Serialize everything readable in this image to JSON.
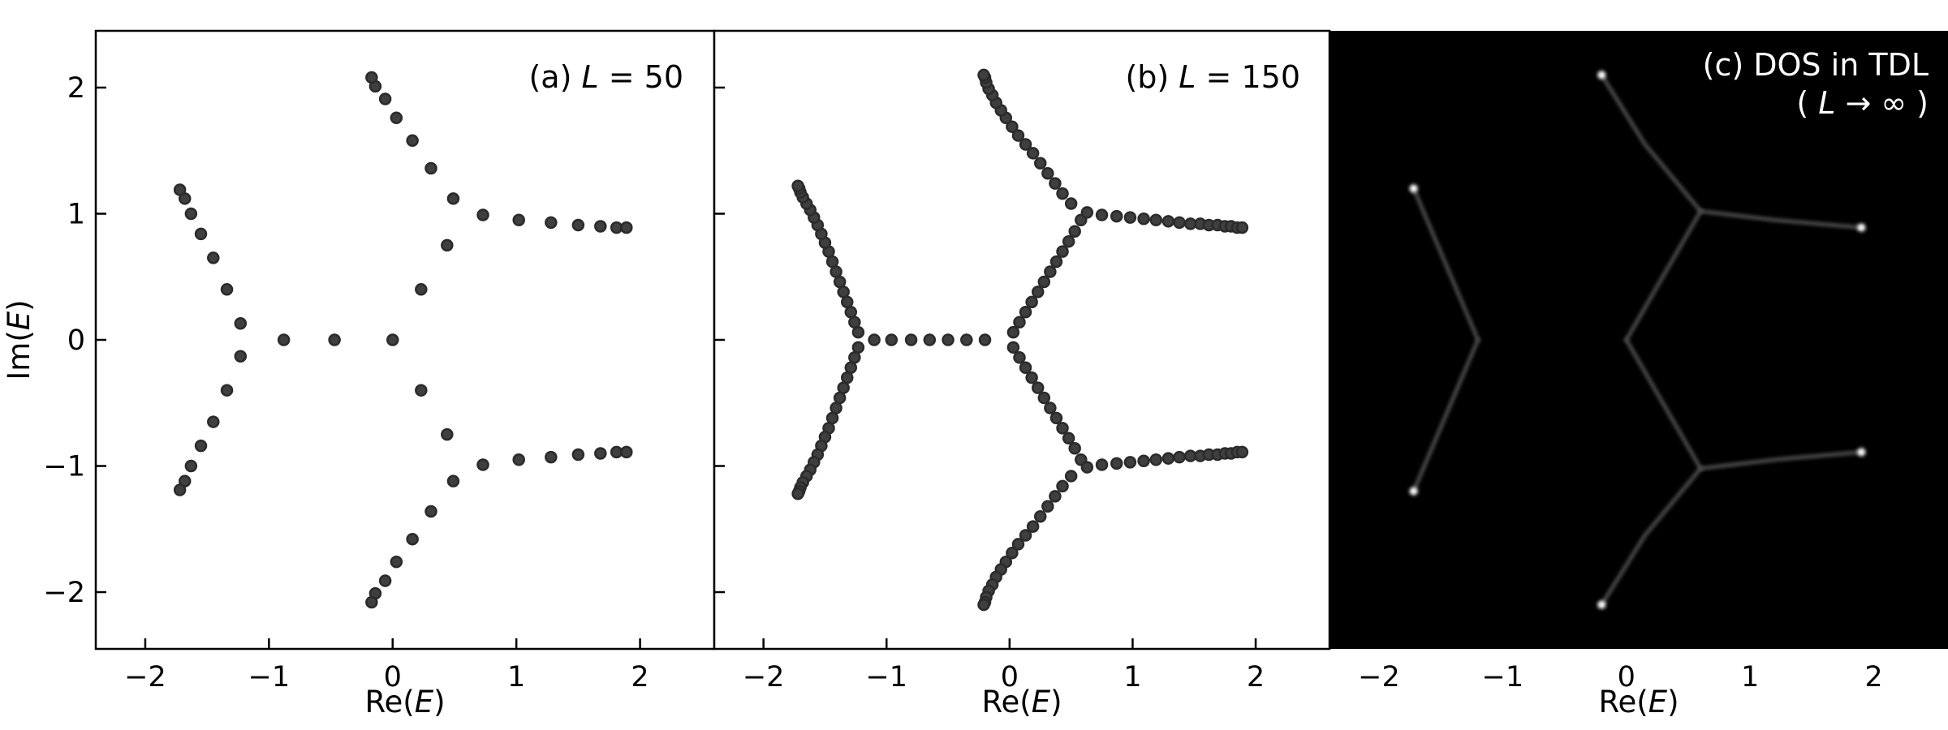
{
  "chart_data": [
    {
      "type": "scatter",
      "title_parts": [
        "(a) ",
        "L",
        " = 50"
      ],
      "xlabel_parts": [
        "Re(",
        "E",
        ")"
      ],
      "ylabel_parts": [
        "Im(",
        "E",
        ")"
      ],
      "xlim": [
        -2.4,
        2.6
      ],
      "ylim": [
        -2.45,
        2.45
      ],
      "xticks": [
        -2,
        -1,
        0,
        1,
        2
      ],
      "yticks": [
        -2,
        -1,
        0,
        1,
        2
      ],
      "xtick_labels": [
        "−2",
        "−1",
        "0",
        "1",
        "2"
      ],
      "ytick_labels": [
        "−2",
        "−1",
        "0",
        "1",
        "2"
      ],
      "grid": false,
      "series": [
        {
          "values": [
            [
              0,
              0
            ],
            [
              -0.47,
              0
            ],
            [
              -0.88,
              0
            ],
            [
              -1.23,
              0.13
            ],
            [
              -1.34,
              0.4
            ],
            [
              -1.45,
              0.65
            ],
            [
              -1.55,
              0.84
            ],
            [
              -1.63,
              1.0
            ],
            [
              -1.68,
              1.12
            ],
            [
              -1.72,
              1.19
            ],
            [
              -1.23,
              -0.13
            ],
            [
              -1.34,
              -0.4
            ],
            [
              -1.45,
              -0.65
            ],
            [
              -1.55,
              -0.84
            ],
            [
              -1.63,
              -1.0
            ],
            [
              -1.68,
              -1.12
            ],
            [
              -1.72,
              -1.19
            ],
            [
              0.23,
              0.4
            ],
            [
              0.44,
              0.75
            ],
            [
              0.49,
              1.12
            ],
            [
              0.73,
              0.99
            ],
            [
              1.02,
              0.95
            ],
            [
              1.28,
              0.93
            ],
            [
              1.5,
              0.91
            ],
            [
              1.68,
              0.9
            ],
            [
              1.81,
              0.89
            ],
            [
              1.89,
              0.89
            ],
            [
              0.31,
              1.36
            ],
            [
              0.16,
              1.58
            ],
            [
              0.03,
              1.76
            ],
            [
              -0.06,
              1.91
            ],
            [
              -0.14,
              2.01
            ],
            [
              -0.17,
              2.08
            ],
            [
              0.23,
              -0.4
            ],
            [
              0.44,
              -0.75
            ],
            [
              0.49,
              -1.12
            ],
            [
              0.73,
              -0.99
            ],
            [
              1.02,
              -0.95
            ],
            [
              1.28,
              -0.93
            ],
            [
              1.5,
              -0.91
            ],
            [
              1.68,
              -0.9
            ],
            [
              1.81,
              -0.89
            ],
            [
              1.89,
              -0.89
            ],
            [
              0.31,
              -1.36
            ],
            [
              0.16,
              -1.58
            ],
            [
              0.03,
              -1.76
            ],
            [
              -0.06,
              -1.91
            ],
            [
              -0.14,
              -2.01
            ],
            [
              -0.17,
              -2.08
            ]
          ]
        }
      ]
    },
    {
      "type": "scatter",
      "title_parts": [
        "(b) ",
        "L",
        " = 150"
      ],
      "xlabel_parts": [
        "Re(",
        "E",
        ")"
      ],
      "xlim": [
        -2.4,
        2.6
      ],
      "ylim": [
        -2.45,
        2.45
      ],
      "xticks": [
        -2,
        -1,
        0,
        1,
        2
      ],
      "yticks": [
        -2,
        -1,
        0,
        1,
        2
      ],
      "xtick_labels": [
        "−2",
        "−1",
        "0",
        "1",
        "2"
      ],
      "grid": false,
      "series": [
        {
          "values": [
            [
              -0.2,
              0
            ],
            [
              -0.35,
              0
            ],
            [
              -0.5,
              0
            ],
            [
              -0.65,
              0
            ],
            [
              -0.8,
              0
            ],
            [
              -0.96,
              0
            ],
            [
              -1.1,
              0
            ],
            [
              -1.23,
              0.06
            ],
            [
              -1.26,
              0.14
            ],
            [
              -1.29,
              0.22
            ],
            [
              -1.32,
              0.3
            ],
            [
              -1.35,
              0.38
            ],
            [
              -1.38,
              0.46
            ],
            [
              -1.41,
              0.54
            ],
            [
              -1.44,
              0.62
            ],
            [
              -1.47,
              0.7
            ],
            [
              -1.5,
              0.77
            ],
            [
              -1.53,
              0.84
            ],
            [
              -1.56,
              0.91
            ],
            [
              -1.59,
              0.97
            ],
            [
              -1.62,
              1.03
            ],
            [
              -1.65,
              1.08
            ],
            [
              -1.68,
              1.13
            ],
            [
              -1.7,
              1.17
            ],
            [
              -1.71,
              1.2
            ],
            [
              -1.72,
              1.22
            ],
            [
              -1.23,
              -0.06
            ],
            [
              -1.26,
              -0.14
            ],
            [
              -1.29,
              -0.22
            ],
            [
              -1.32,
              -0.3
            ],
            [
              -1.35,
              -0.38
            ],
            [
              -1.38,
              -0.46
            ],
            [
              -1.41,
              -0.54
            ],
            [
              -1.44,
              -0.62
            ],
            [
              -1.47,
              -0.7
            ],
            [
              -1.5,
              -0.77
            ],
            [
              -1.53,
              -0.84
            ],
            [
              -1.56,
              -0.91
            ],
            [
              -1.59,
              -0.97
            ],
            [
              -1.62,
              -1.03
            ],
            [
              -1.65,
              -1.08
            ],
            [
              -1.68,
              -1.13
            ],
            [
              -1.7,
              -1.17
            ],
            [
              -1.71,
              -1.2
            ],
            [
              -1.72,
              -1.22
            ],
            [
              0.03,
              0.06
            ],
            [
              0.08,
              0.14
            ],
            [
              0.13,
              0.22
            ],
            [
              0.18,
              0.3
            ],
            [
              0.23,
              0.38
            ],
            [
              0.28,
              0.46
            ],
            [
              0.33,
              0.54
            ],
            [
              0.38,
              0.62
            ],
            [
              0.43,
              0.7
            ],
            [
              0.48,
              0.78
            ],
            [
              0.53,
              0.86
            ],
            [
              0.58,
              0.95
            ],
            [
              0.63,
              1.01
            ],
            [
              0.75,
              0.99
            ],
            [
              0.87,
              0.98
            ],
            [
              0.98,
              0.97
            ],
            [
              1.09,
              0.96
            ],
            [
              1.19,
              0.95
            ],
            [
              1.29,
              0.94
            ],
            [
              1.38,
              0.93
            ],
            [
              1.47,
              0.92
            ],
            [
              1.55,
              0.92
            ],
            [
              1.62,
              0.91
            ],
            [
              1.69,
              0.91
            ],
            [
              1.75,
              0.9
            ],
            [
              1.8,
              0.9
            ],
            [
              1.85,
              0.89
            ],
            [
              1.89,
              0.89
            ],
            [
              0.5,
              1.08
            ],
            [
              0.43,
              1.16
            ],
            [
              0.37,
              1.24
            ],
            [
              0.31,
              1.32
            ],
            [
              0.25,
              1.4
            ],
            [
              0.19,
              1.48
            ],
            [
              0.13,
              1.55
            ],
            [
              0.07,
              1.62
            ],
            [
              0.02,
              1.69
            ],
            [
              -0.03,
              1.76
            ],
            [
              -0.07,
              1.82
            ],
            [
              -0.11,
              1.88
            ],
            [
              -0.14,
              1.94
            ],
            [
              -0.17,
              1.99
            ],
            [
              -0.19,
              2.04
            ],
            [
              -0.2,
              2.08
            ],
            [
              -0.21,
              2.1
            ],
            [
              0.03,
              -0.06
            ],
            [
              0.08,
              -0.14
            ],
            [
              0.13,
              -0.22
            ],
            [
              0.18,
              -0.3
            ],
            [
              0.23,
              -0.38
            ],
            [
              0.28,
              -0.46
            ],
            [
              0.33,
              -0.54
            ],
            [
              0.38,
              -0.62
            ],
            [
              0.43,
              -0.7
            ],
            [
              0.48,
              -0.78
            ],
            [
              0.53,
              -0.86
            ],
            [
              0.58,
              -0.95
            ],
            [
              0.63,
              -1.01
            ],
            [
              0.75,
              -0.99
            ],
            [
              0.87,
              -0.98
            ],
            [
              0.98,
              -0.97
            ],
            [
              1.09,
              -0.96
            ],
            [
              1.19,
              -0.95
            ],
            [
              1.29,
              -0.94
            ],
            [
              1.38,
              -0.93
            ],
            [
              1.47,
              -0.92
            ],
            [
              1.55,
              -0.92
            ],
            [
              1.62,
              -0.91
            ],
            [
              1.69,
              -0.91
            ],
            [
              1.75,
              -0.9
            ],
            [
              1.8,
              -0.9
            ],
            [
              1.85,
              -0.89
            ],
            [
              1.89,
              -0.89
            ],
            [
              0.5,
              -1.08
            ],
            [
              0.43,
              -1.16
            ],
            [
              0.37,
              -1.24
            ],
            [
              0.31,
              -1.32
            ],
            [
              0.25,
              -1.4
            ],
            [
              0.19,
              -1.48
            ],
            [
              0.13,
              -1.55
            ],
            [
              0.07,
              -1.62
            ],
            [
              0.02,
              -1.69
            ],
            [
              -0.03,
              -1.76
            ],
            [
              -0.07,
              -1.82
            ],
            [
              -0.11,
              -1.88
            ],
            [
              -0.14,
              -1.94
            ],
            [
              -0.17,
              -1.99
            ],
            [
              -0.19,
              -2.04
            ],
            [
              -0.2,
              -2.08
            ],
            [
              -0.21,
              -2.1
            ]
          ]
        }
      ]
    },
    {
      "type": "heatmap",
      "title_lines": [
        [
          "(c) DOS in TDL"
        ],
        [
          "( ",
          "L",
          " → ∞ )"
        ]
      ],
      "xlabel_parts": [
        "Re(",
        "E",
        ")"
      ],
      "xlim": [
        -2.4,
        2.6
      ],
      "ylim": [
        -2.45,
        2.45
      ],
      "xticks": [
        -2,
        -1,
        0,
        1,
        2
      ],
      "yticks": [
        -2,
        -1,
        0,
        1,
        2
      ],
      "xtick_labels": [
        "−2",
        "−1",
        "0",
        "1",
        "2"
      ],
      "background_color": "#000000",
      "line_color": "#4a4a4a",
      "bright_color": "#ffffff",
      "branches": [
        [
          [
            -1.2,
            0
          ],
          [
            0,
            0
          ]
        ],
        [
          [
            -1.2,
            0
          ],
          [
            -1.72,
            1.2
          ]
        ],
        [
          [
            -1.2,
            0
          ],
          [
            -1.72,
            -1.2
          ]
        ],
        [
          [
            0,
            0
          ],
          [
            0.6,
            1.02
          ]
        ],
        [
          [
            0,
            0
          ],
          [
            0.6,
            -1.02
          ]
        ],
        [
          [
            0.6,
            1.02
          ],
          [
            1.2,
            0.95
          ],
          [
            1.9,
            0.89
          ]
        ],
        [
          [
            0.6,
            -1.02
          ],
          [
            1.2,
            -0.95
          ],
          [
            1.9,
            -0.89
          ]
        ],
        [
          [
            0.6,
            1.02
          ],
          [
            0.15,
            1.55
          ],
          [
            -0.2,
            2.1
          ]
        ],
        [
          [
            0.6,
            -1.02
          ],
          [
            0.15,
            -1.55
          ],
          [
            -0.2,
            -2.1
          ]
        ]
      ],
      "bright_points": [
        [
          -1.72,
          1.2
        ],
        [
          -1.72,
          -1.2
        ],
        [
          -0.2,
          2.1
        ],
        [
          -0.2,
          -2.1
        ],
        [
          1.9,
          0.89
        ],
        [
          1.9,
          -0.89
        ]
      ]
    }
  ]
}
